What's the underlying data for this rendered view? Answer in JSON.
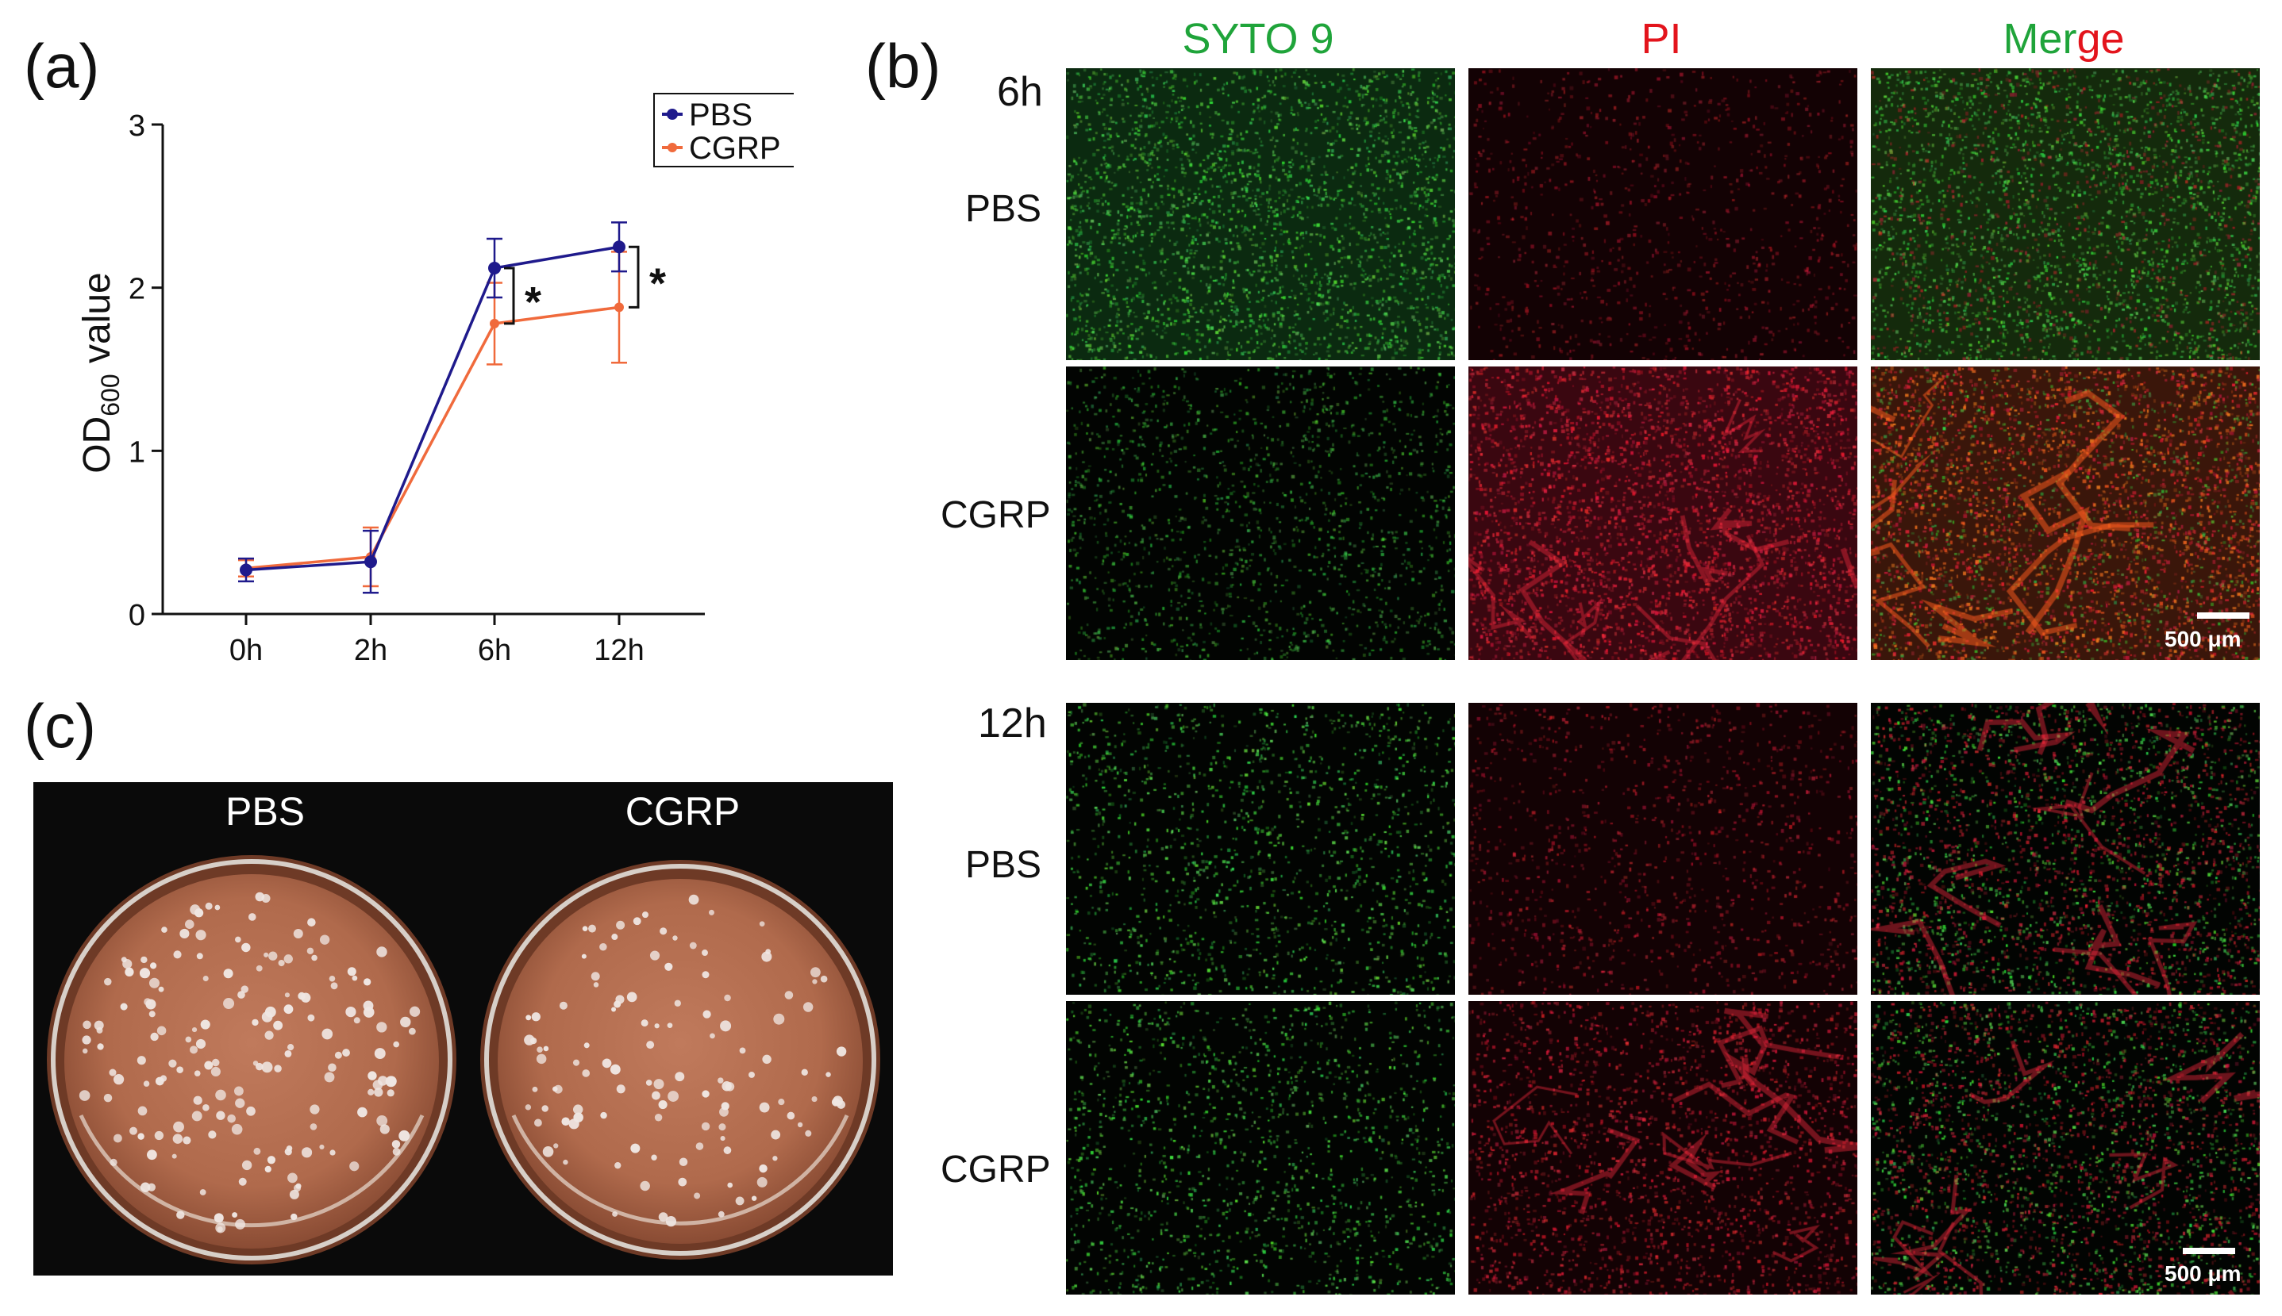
{
  "figure": {
    "panel_a_label": "(a)",
    "panel_b_label": "(b)",
    "panel_c_label": "(c)"
  },
  "chart_data": {
    "type": "line",
    "title": "",
    "xlabel": "",
    "ylabel_main": "OD",
    "ylabel_sub": "600",
    "ylabel_tail": " value",
    "categories": [
      "0h",
      "2h",
      "6h",
      "12h"
    ],
    "ylim": [
      0,
      3
    ],
    "yticks": [
      "0",
      "1",
      "2",
      "3"
    ],
    "series": [
      {
        "name": "PBS",
        "color": "#1f1a8c",
        "values": [
          0.27,
          0.32,
          2.12,
          2.25
        ],
        "errors": [
          0.07,
          0.19,
          0.18,
          0.15
        ]
      },
      {
        "name": "CGRP",
        "color": "#f06a3c",
        "values": [
          0.28,
          0.35,
          1.78,
          1.88
        ],
        "errors": [
          0.05,
          0.18,
          0.25,
          0.34
        ]
      }
    ],
    "significance": [
      "*",
      "*"
    ],
    "legend_position": "top-right",
    "grid": false
  },
  "microscopy": {
    "columns": [
      {
        "label": "SYTO 9",
        "color": "#1fa43a"
      },
      {
        "label": "PI",
        "color": "#e3141c"
      }
    ],
    "merge_label_part1": "Mer",
    "merge_label_part2": "ge",
    "merge_colors": [
      "#1fa43a",
      "#e3141c"
    ],
    "time_6h": "6h",
    "time_12h": "12h",
    "row_pbs": "PBS",
    "row_cgrp": "CGRP",
    "scale_bar_label": "500 μm"
  },
  "plates": {
    "left_label": "PBS",
    "right_label": "CGRP"
  }
}
